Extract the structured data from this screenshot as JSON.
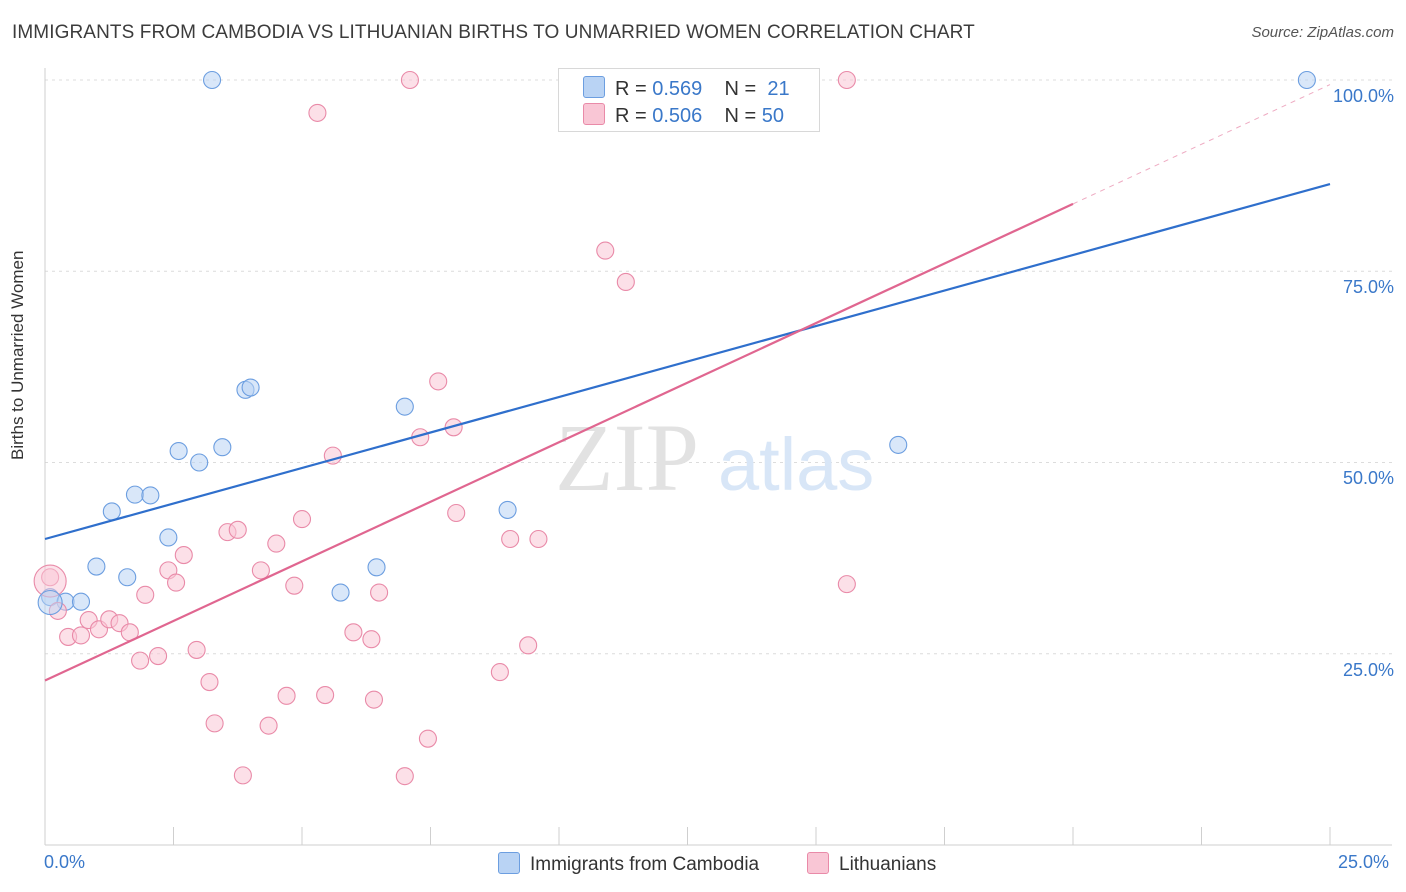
{
  "header": {
    "title": "IMMIGRANTS FROM CAMBODIA VS LITHUANIAN BIRTHS TO UNMARRIED WOMEN CORRELATION CHART",
    "source": "Source: ZipAtlas.com"
  },
  "watermark": {
    "zip": "ZIP",
    "atlas": "atlas"
  },
  "legend": {
    "r_label": "R =",
    "n_label": "N =",
    "series": [
      {
        "r": "0.569",
        "n": "21",
        "fill": "#b9d3f4",
        "stroke": "#6c9ee0"
      },
      {
        "r": "0.506",
        "n": "50",
        "fill": "#f9c6d5",
        "stroke": "#e98aa8"
      }
    ]
  },
  "chart_data": {
    "type": "scatter",
    "title": "IMMIGRANTS FROM CAMBODIA VS LITHUANIAN BIRTHS TO UNMARRIED WOMEN CORRELATION CHART",
    "xlabel": "",
    "ylabel": "Births to Unmarried Women",
    "xlim": [
      0,
      25
    ],
    "ylim": [
      0,
      100
    ],
    "x_tick_labels": [
      "0.0%",
      "25.0%"
    ],
    "y_tick_labels": [
      "100.0%",
      "75.0%",
      "50.0%",
      "25.0%"
    ],
    "y_tick_values": [
      100,
      75,
      50,
      25
    ],
    "grid": true,
    "legend_placement": "top-center and bottom",
    "series": [
      {
        "name": "Immigrants from Cambodia",
        "color": "#6c9ee0",
        "fill": "#b9d3f4",
        "trend_color": "#2f6fcc",
        "trend": {
          "x": [
            0,
            25
          ],
          "y": [
            40,
            86.4
          ]
        },
        "points": [
          {
            "x": 0.1,
            "y": 32.4
          },
          {
            "x": 0.4,
            "y": 31.8
          },
          {
            "x": 0.7,
            "y": 31.8
          },
          {
            "x": 1.0,
            "y": 36.4
          },
          {
            "x": 1.3,
            "y": 43.6
          },
          {
            "x": 1.6,
            "y": 35.0
          },
          {
            "x": 1.75,
            "y": 45.8
          },
          {
            "x": 2.05,
            "y": 45.7
          },
          {
            "x": 2.4,
            "y": 40.2
          },
          {
            "x": 2.6,
            "y": 51.5
          },
          {
            "x": 3.0,
            "y": 50.0
          },
          {
            "x": 3.25,
            "y": 100.0
          },
          {
            "x": 3.45,
            "y": 52.0
          },
          {
            "x": 3.9,
            "y": 59.5
          },
          {
            "x": 4.0,
            "y": 59.8
          },
          {
            "x": 5.75,
            "y": 33.0
          },
          {
            "x": 6.45,
            "y": 36.3
          },
          {
            "x": 7.0,
            "y": 57.3
          },
          {
            "x": 9.0,
            "y": 43.8
          },
          {
            "x": 16.6,
            "y": 52.3
          },
          {
            "x": 24.55,
            "y": 100.0
          }
        ]
      },
      {
        "name": "Lithuanians",
        "color": "#e98aa8",
        "fill": "#f9c6d5",
        "trend_color": "#e06690",
        "trend": {
          "x": [
            0,
            20
          ],
          "y": [
            21.5,
            83.8
          ]
        },
        "trend_dashed": {
          "x": [
            20,
            25
          ],
          "y": [
            83.8,
            99.4
          ]
        },
        "points": [
          {
            "x": 0.1,
            "y": 35.0
          },
          {
            "x": 0.25,
            "y": 30.6
          },
          {
            "x": 0.45,
            "y": 27.2
          },
          {
            "x": 0.7,
            "y": 27.4
          },
          {
            "x": 0.85,
            "y": 29.4
          },
          {
            "x": 1.05,
            "y": 28.2
          },
          {
            "x": 1.25,
            "y": 29.5
          },
          {
            "x": 1.45,
            "y": 29.0
          },
          {
            "x": 1.65,
            "y": 27.8
          },
          {
            "x": 1.85,
            "y": 24.1
          },
          {
            "x": 1.95,
            "y": 32.7
          },
          {
            "x": 2.2,
            "y": 24.7
          },
          {
            "x": 2.4,
            "y": 35.9
          },
          {
            "x": 2.55,
            "y": 34.3
          },
          {
            "x": 2.7,
            "y": 37.9
          },
          {
            "x": 2.95,
            "y": 25.5
          },
          {
            "x": 3.2,
            "y": 21.3
          },
          {
            "x": 3.3,
            "y": 15.9
          },
          {
            "x": 3.55,
            "y": 40.9
          },
          {
            "x": 3.75,
            "y": 41.2
          },
          {
            "x": 3.85,
            "y": 9.1
          },
          {
            "x": 4.2,
            "y": 35.9
          },
          {
            "x": 4.35,
            "y": 15.6
          },
          {
            "x": 4.5,
            "y": 39.4
          },
          {
            "x": 4.7,
            "y": 19.5
          },
          {
            "x": 4.85,
            "y": 33.9
          },
          {
            "x": 5.0,
            "y": 42.6
          },
          {
            "x": 5.3,
            "y": 95.7
          },
          {
            "x": 5.45,
            "y": 19.6
          },
          {
            "x": 5.6,
            "y": 50.9
          },
          {
            "x": 6.0,
            "y": 27.8
          },
          {
            "x": 6.4,
            "y": 19.0
          },
          {
            "x": 6.35,
            "y": 26.9
          },
          {
            "x": 6.5,
            "y": 33.0
          },
          {
            "x": 7.0,
            "y": 9.0
          },
          {
            "x": 7.1,
            "y": 100.0
          },
          {
            "x": 7.3,
            "y": 53.3
          },
          {
            "x": 7.45,
            "y": 13.9
          },
          {
            "x": 7.65,
            "y": 60.6
          },
          {
            "x": 8.0,
            "y": 43.4
          },
          {
            "x": 7.95,
            "y": 54.6
          },
          {
            "x": 8.85,
            "y": 22.6
          },
          {
            "x": 9.05,
            "y": 40.0
          },
          {
            "x": 9.4,
            "y": 26.1
          },
          {
            "x": 9.6,
            "y": 40.0
          },
          {
            "x": 10.9,
            "y": 77.7
          },
          {
            "x": 11.3,
            "y": 73.6
          },
          {
            "x": 11.8,
            "y": 100.0
          },
          {
            "x": 15.6,
            "y": 100.0
          },
          {
            "x": 15.6,
            "y": 34.1
          }
        ]
      }
    ]
  },
  "bottom_legend": {
    "items": [
      {
        "label": "Immigrants from Cambodia",
        "fill": "#b9d3f4",
        "stroke": "#6c9ee0"
      },
      {
        "label": "Lithuanians",
        "fill": "#f9c6d5",
        "stroke": "#e98aa8"
      }
    ]
  }
}
